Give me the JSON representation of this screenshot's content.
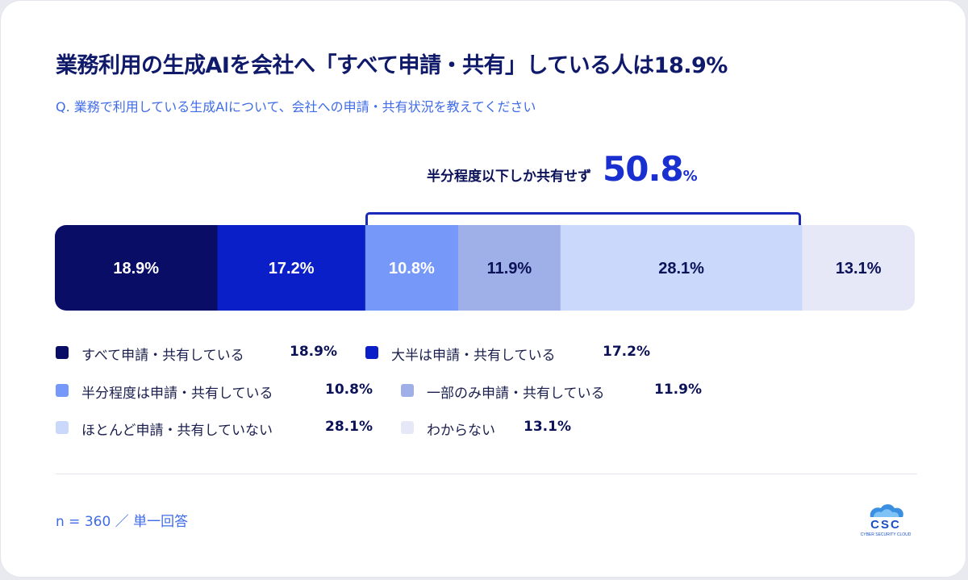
{
  "title": "業務利用の生成AIを会社へ「すべて申請・共有」している人は18.9%",
  "subtitle": "Q. 業務で利用している生成AIについて、会社への申請・共有状況を教えてください",
  "callout": {
    "label": "半分程度以下しか共有せず",
    "value": "50.8",
    "unit": "%"
  },
  "chart_data": {
    "type": "bar",
    "orientation": "horizontal-stacked",
    "categories": [
      "すべて申請・共有している",
      "大半は申請・共有している",
      "半分程度は申請・共有している",
      "一部のみ申請・共有している",
      "ほとんど申請・共有していない",
      "わからない"
    ],
    "values": [
      18.9,
      17.2,
      10.8,
      11.9,
      28.1,
      13.1
    ],
    "value_labels": [
      "18.9%",
      "17.2%",
      "10.8%",
      "11.9%",
      "28.1%",
      "13.1%"
    ],
    "colors": [
      "#0a0d66",
      "#0b1fc9",
      "#7598f9",
      "#9fb0e8",
      "#cad8fb",
      "#e7e8f7"
    ],
    "label_colors": [
      "#ffffff",
      "#ffffff",
      "#ffffff",
      "#0b1258",
      "#0b1258",
      "#0b1258"
    ],
    "legend_position": "bottom",
    "grid": false
  },
  "legend": [
    {
      "label": "すべて申請・共有している",
      "value": "18.9%",
      "color": "#0a0d66"
    },
    {
      "label": "大半は申請・共有している",
      "value": "17.2%",
      "color": "#0b1fc9"
    },
    {
      "label": "半分程度は申請・共有している",
      "value": "10.8%",
      "color": "#7598f9"
    },
    {
      "label": "一部のみ申請・共有している",
      "value": "11.9%",
      "color": "#9fb0e8"
    },
    {
      "label": "ほとんど申請・共有していない",
      "value": "28.1%",
      "color": "#cad8fb"
    },
    {
      "label": "わからない",
      "value": "13.1%",
      "color": "#e7e8f7"
    }
  ],
  "footnote": "n = 360 ／ 単一回答",
  "logo": {
    "text": "CSC",
    "tagline": "CYBER SECURITY CLOUD",
    "color": "#1a4fc4"
  }
}
